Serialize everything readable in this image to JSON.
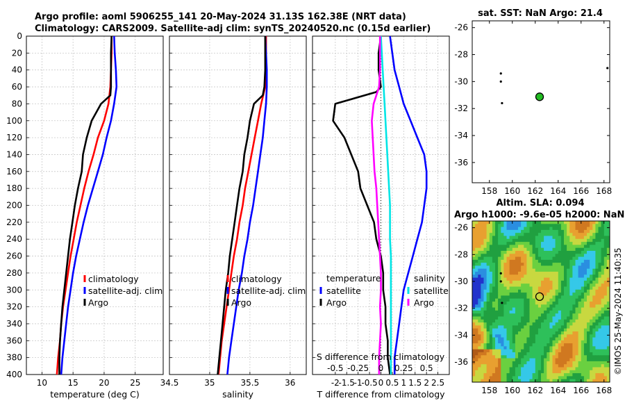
{
  "header": {
    "title_line1": "Argo profile: aoml 5906255_141 20-May-2024 31.13S 162.38E (NRT data)",
    "title_line2": "Climatology: CARS2009. Satellite-adj clim: synTS_20240520.nc (0.15d earlier)"
  },
  "colors": {
    "argo": "#000000",
    "climatology": "#ff0000",
    "satellite": "#0000ff",
    "salinity_sat": "#00e5e5",
    "salinity_argo": "#ff00ff",
    "grid": "#c8c8c8"
  },
  "depth_axis": {
    "ylim": [
      0,
      400
    ],
    "ticks": [
      "0",
      "20",
      "40",
      "60",
      "80",
      "100",
      "120",
      "140",
      "160",
      "180",
      "200",
      "220",
      "240",
      "260",
      "280",
      "300",
      "320",
      "340",
      "360",
      "380",
      "400"
    ]
  },
  "chart_data": [
    {
      "id": "temperature",
      "type": "line",
      "xlabel": "temperature (deg C)",
      "xlim": [
        7.5,
        29.5
      ],
      "xticks": [
        "10",
        "15",
        "20",
        "25"
      ],
      "xtick_values": [
        10,
        15,
        20,
        25
      ],
      "legend": [
        "climatology",
        "satellite-adj. clim",
        "Argo"
      ],
      "series": [
        {
          "name": "climatology",
          "color": "#ff0000",
          "x": [
            21.2,
            21.2,
            21.1,
            21.0,
            20.7,
            20.0,
            19.0,
            18.3,
            17.5,
            16.8,
            16.2,
            15.6,
            15.1,
            14.6,
            14.2,
            13.8,
            13.4,
            13.1,
            12.9,
            12.6,
            12.4
          ],
          "y": [
            0,
            20,
            40,
            60,
            80,
            100,
            120,
            140,
            160,
            180,
            200,
            220,
            240,
            260,
            280,
            300,
            320,
            340,
            360,
            380,
            400
          ]
        },
        {
          "name": "satellite-adj. clim",
          "color": "#0000ff",
          "x": [
            21.6,
            21.7,
            21.9,
            22.0,
            21.6,
            21.1,
            20.4,
            19.8,
            19.0,
            18.2,
            17.4,
            16.7,
            16.1,
            15.5,
            15.0,
            14.6,
            14.2,
            13.9,
            13.6,
            13.3,
            13.1
          ],
          "y": [
            0,
            20,
            40,
            60,
            80,
            100,
            120,
            140,
            160,
            180,
            200,
            220,
            240,
            260,
            280,
            300,
            320,
            340,
            360,
            380,
            400
          ]
        },
        {
          "name": "Argo",
          "color": "#000000",
          "x": [
            21.2,
            21.1,
            21.1,
            21.1,
            21.0,
            19.5,
            18.0,
            17.2,
            16.6,
            16.4,
            15.8,
            15.3,
            14.9,
            14.5,
            14.2,
            13.9,
            13.6,
            13.3,
            13.1,
            12.9,
            12.8,
            12.8
          ],
          "y": [
            0,
            20,
            40,
            60,
            70,
            80,
            100,
            120,
            140,
            160,
            180,
            200,
            220,
            240,
            260,
            280,
            300,
            320,
            340,
            360,
            380,
            400
          ]
        }
      ]
    },
    {
      "id": "salinity",
      "type": "line",
      "xlabel": "salinity",
      "xlim": [
        34.5,
        36.2
      ],
      "xticks": [
        "34.5",
        "35",
        "35.5",
        "36"
      ],
      "xtick_values": [
        34.5,
        35.0,
        35.5,
        36.0
      ],
      "legend": [
        "climatology",
        "satellite-adj. clim",
        "Argo"
      ],
      "series": [
        {
          "name": "climatology",
          "color": "#ff0000",
          "x": [
            35.7,
            35.7,
            35.7,
            35.69,
            35.64,
            35.6,
            35.56,
            35.52,
            35.48,
            35.44,
            35.41,
            35.37,
            35.34,
            35.3,
            35.27,
            35.24,
            35.21,
            35.18,
            35.15,
            35.13,
            35.11
          ],
          "y": [
            0,
            20,
            40,
            60,
            80,
            100,
            120,
            140,
            160,
            180,
            200,
            220,
            240,
            260,
            280,
            300,
            320,
            340,
            360,
            380,
            400
          ]
        },
        {
          "name": "satellite-adj. clim",
          "color": "#0000ff",
          "x": [
            35.69,
            35.7,
            35.71,
            35.71,
            35.7,
            35.68,
            35.66,
            35.63,
            35.6,
            35.57,
            35.54,
            35.5,
            35.47,
            35.43,
            35.4,
            35.36,
            35.33,
            35.3,
            35.27,
            35.24,
            35.22
          ],
          "y": [
            0,
            20,
            40,
            60,
            80,
            100,
            120,
            140,
            160,
            180,
            200,
            220,
            240,
            260,
            280,
            300,
            320,
            340,
            360,
            380,
            400
          ]
        },
        {
          "name": "Argo",
          "color": "#000000",
          "x": [
            35.69,
            35.69,
            35.69,
            35.68,
            35.66,
            35.55,
            35.5,
            35.47,
            35.43,
            35.41,
            35.37,
            35.34,
            35.31,
            35.28,
            35.25,
            35.23,
            35.2,
            35.18,
            35.16,
            35.14,
            35.12,
            35.1
          ],
          "y": [
            0,
            20,
            40,
            60,
            70,
            80,
            100,
            120,
            140,
            160,
            180,
            200,
            220,
            240,
            260,
            280,
            300,
            320,
            340,
            360,
            380,
            400
          ]
        }
      ]
    },
    {
      "id": "differences",
      "type": "line",
      "xlabel": "T difference from climatology",
      "xlabel_top": "S difference from climatology",
      "xlim": [
        -3,
        3
      ],
      "xticks": [
        "-2",
        "-1.5",
        "-1",
        "-0.5",
        "0",
        "0.5",
        "1",
        "1.5",
        "2",
        "2.5"
      ],
      "xtick_values": [
        -2,
        -1.5,
        -1,
        -0.5,
        0,
        0.5,
        1,
        1.5,
        2,
        2.5
      ],
      "top_xticks": [
        "-0.5",
        "-0.25",
        "0",
        "0.25",
        "0.5"
      ],
      "top_xtick_values": [
        -0.5,
        -0.25,
        0,
        0.25,
        0.5
      ],
      "legend_titles": [
        "temperature",
        "salinity"
      ],
      "legend": [
        "satellite",
        "Argo",
        "satellite",
        "Argo"
      ],
      "series": [
        {
          "name": "temperature satellite",
          "color": "#0000ff",
          "x": [
            0.4,
            0.5,
            0.6,
            0.8,
            1.0,
            1.3,
            1.6,
            1.9,
            2.0,
            2.0,
            1.9,
            1.8,
            1.6,
            1.4,
            1.2,
            1.0,
            0.9,
            0.8,
            0.7,
            0.6,
            0.6
          ],
          "y": [
            0,
            20,
            40,
            60,
            80,
            100,
            120,
            140,
            160,
            180,
            200,
            220,
            240,
            260,
            280,
            300,
            320,
            340,
            360,
            380,
            400
          ]
        },
        {
          "name": "temperature Argo",
          "color": "#000000",
          "x": [
            0.0,
            -0.1,
            -0.1,
            0.0,
            -0.2,
            -2.0,
            -2.1,
            -1.6,
            -1.3,
            -1.0,
            -0.9,
            -0.6,
            -0.3,
            -0.2,
            0.0,
            0.1,
            0.1,
            0.2,
            0.2,
            0.3,
            0.3,
            0.4
          ],
          "y": [
            0,
            20,
            40,
            60,
            66,
            80,
            100,
            120,
            140,
            160,
            180,
            200,
            220,
            240,
            260,
            280,
            300,
            320,
            340,
            360,
            380,
            400
          ]
        },
        {
          "name": "salinity satellite",
          "color": "#00e5e5",
          "x": [
            0.0,
            0.01,
            0.02,
            0.03,
            0.04,
            0.05,
            0.06,
            0.07,
            0.08,
            0.09,
            0.1,
            0.1,
            0.1,
            0.11,
            0.11,
            0.11,
            0.11,
            0.11,
            0.11,
            0.11,
            0.11
          ],
          "y": [
            0,
            20,
            40,
            60,
            80,
            100,
            120,
            140,
            160,
            180,
            200,
            220,
            240,
            260,
            280,
            300,
            320,
            340,
            360,
            380,
            400
          ]
        },
        {
          "name": "salinity Argo",
          "color": "#ff00ff",
          "x": [
            -0.01,
            -0.01,
            -0.01,
            -0.02,
            -0.08,
            -0.1,
            -0.09,
            -0.08,
            -0.07,
            -0.05,
            -0.04,
            -0.03,
            -0.02,
            -0.01,
            0.0,
            0.0,
            -0.01,
            0.0,
            -0.01,
            -0.02,
            -0.02
          ],
          "y": [
            0,
            20,
            40,
            60,
            80,
            100,
            120,
            140,
            160,
            180,
            200,
            220,
            240,
            260,
            280,
            300,
            320,
            340,
            360,
            380,
            400
          ]
        }
      ]
    },
    {
      "id": "sst_map",
      "type": "scatter",
      "title": "sat. SST: NaN Argo: 21.4",
      "xlim": [
        156.5,
        168.5
      ],
      "ylim": [
        -37.5,
        -25.5
      ],
      "xticks": [
        "158",
        "160",
        "162",
        "164",
        "166",
        "168"
      ],
      "xtick_values": [
        158,
        160,
        162,
        164,
        166,
        168
      ],
      "yticks": [
        "-26",
        "-28",
        "-30",
        "-32",
        "-34",
        "-36"
      ],
      "ytick_values": [
        -26,
        -28,
        -30,
        -32,
        -34,
        -36
      ],
      "profile": {
        "lon": 162.38,
        "lat": -31.13
      },
      "other_floats": [
        {
          "lon": 159.0,
          "lat": -29.4
        },
        {
          "lon": 159.1,
          "lat": -31.6
        },
        {
          "lon": 168.3,
          "lat": -29.0
        },
        {
          "lon": 159.0,
          "lat": -30.0
        }
      ]
    },
    {
      "id": "sla_map",
      "type": "heatmap",
      "title_line1": "Altim. SLA: 0.094",
      "title_line2": "Argo h1000: -9.6e-05 h2000: NaN",
      "xlim": [
        156.5,
        168.5
      ],
      "ylim": [
        -37.5,
        -25.5
      ],
      "xticks": [
        "158",
        "160",
        "162",
        "164",
        "166",
        "168"
      ],
      "xtick_values": [
        158,
        160,
        162,
        164,
        166,
        168
      ],
      "yticks": [
        "-26",
        "-28",
        "-30",
        "-32",
        "-34",
        "-36"
      ],
      "ytick_values": [
        -26,
        -28,
        -30,
        -32,
        -34,
        -36
      ],
      "profile": {
        "lon": 162.38,
        "lat": -31.13
      },
      "other_floats": [
        {
          "lon": 159.0,
          "lat": -29.4
        },
        {
          "lon": 159.1,
          "lat": -31.6
        },
        {
          "lon": 168.3,
          "lat": -29.0
        },
        {
          "lon": 159.0,
          "lat": -30.0
        }
      ]
    }
  ],
  "footer": {
    "stamp": "©IMOS 25-May-2024 11:40:35"
  }
}
